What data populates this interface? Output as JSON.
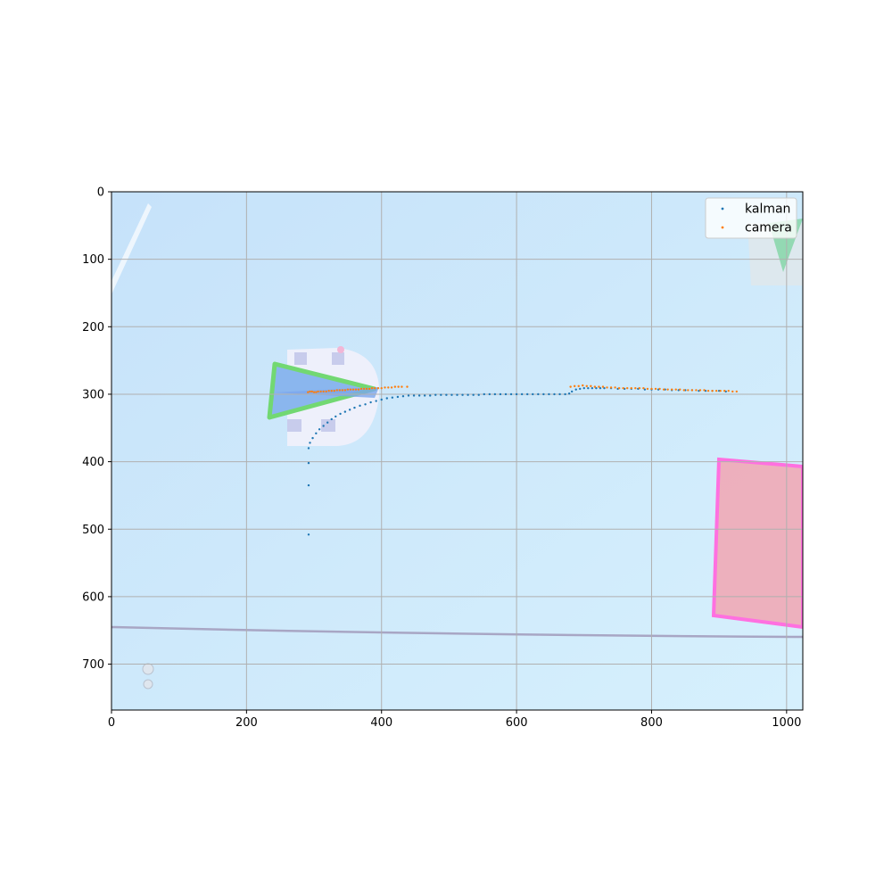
{
  "chart_data": {
    "type": "scatter",
    "title": "",
    "xlabel": "",
    "ylabel": "",
    "xlim": [
      0,
      1024
    ],
    "ylim": [
      768,
      0
    ],
    "y_inverted": true,
    "grid": true,
    "legend_placement": "top-right",
    "x_ticks": [
      "0",
      "200",
      "400",
      "600",
      "800",
      "1000"
    ],
    "y_ticks": [
      "0",
      "100",
      "200",
      "300",
      "400",
      "500",
      "600",
      "700"
    ],
    "background": "overhead camera image of a table with a robot, a green triangle marker and a pink rectangle",
    "series": [
      {
        "name": "kalman",
        "color": "#1f77b4",
        "points": [
          [
            292,
            508
          ],
          [
            292,
            435
          ],
          [
            292,
            402
          ],
          [
            292,
            380
          ],
          [
            294,
            372
          ],
          [
            298,
            365
          ],
          [
            303,
            358
          ],
          [
            308,
            352
          ],
          [
            314,
            347
          ],
          [
            320,
            342
          ],
          [
            326,
            337
          ],
          [
            332,
            333
          ],
          [
            339,
            329
          ],
          [
            346,
            326
          ],
          [
            353,
            323
          ],
          [
            360,
            320
          ],
          [
            368,
            317
          ],
          [
            376,
            315
          ],
          [
            384,
            312
          ],
          [
            392,
            310
          ],
          [
            400,
            308
          ],
          [
            408,
            306
          ],
          [
            416,
            305
          ],
          [
            424,
            304
          ],
          [
            432,
            303
          ],
          [
            440,
            302
          ],
          [
            448,
            302
          ],
          [
            456,
            302
          ],
          [
            464,
            302
          ],
          [
            472,
            302
          ],
          [
            480,
            301
          ],
          [
            488,
            301
          ],
          [
            496,
            301
          ],
          [
            504,
            301
          ],
          [
            512,
            301
          ],
          [
            520,
            301
          ],
          [
            528,
            301
          ],
          [
            536,
            301
          ],
          [
            544,
            301
          ],
          [
            552,
            300
          ],
          [
            560,
            300
          ],
          [
            568,
            300
          ],
          [
            576,
            300
          ],
          [
            584,
            300
          ],
          [
            592,
            300
          ],
          [
            600,
            300
          ],
          [
            608,
            300
          ],
          [
            616,
            300
          ],
          [
            624,
            300
          ],
          [
            632,
            300
          ],
          [
            640,
            300
          ],
          [
            648,
            300
          ],
          [
            656,
            300
          ],
          [
            664,
            300
          ],
          [
            672,
            300
          ],
          [
            678,
            299
          ],
          [
            682,
            296
          ],
          [
            688,
            293
          ],
          [
            694,
            292
          ],
          [
            700,
            291
          ],
          [
            706,
            291
          ],
          [
            712,
            291
          ],
          [
            718,
            291
          ],
          [
            724,
            291
          ],
          [
            730,
            291
          ],
          [
            740,
            291
          ],
          [
            750,
            292
          ],
          [
            760,
            292
          ],
          [
            770,
            292
          ],
          [
            780,
            292
          ],
          [
            790,
            293
          ],
          [
            800,
            293
          ],
          [
            810,
            293
          ],
          [
            820,
            293
          ],
          [
            830,
            294
          ],
          [
            840,
            294
          ],
          [
            850,
            294
          ],
          [
            860,
            294
          ],
          [
            870,
            295
          ],
          [
            880,
            295
          ],
          [
            890,
            295
          ],
          [
            900,
            295
          ],
          [
            910,
            296
          ]
        ]
      },
      {
        "name": "camera",
        "color": "#ff7f0e",
        "points": [
          [
            291,
            297
          ],
          [
            294,
            296
          ],
          [
            297,
            296
          ],
          [
            300,
            297
          ],
          [
            303,
            297
          ],
          [
            306,
            296
          ],
          [
            310,
            296
          ],
          [
            314,
            296
          ],
          [
            318,
            296
          ],
          [
            322,
            295
          ],
          [
            326,
            295
          ],
          [
            330,
            295
          ],
          [
            334,
            294
          ],
          [
            338,
            294
          ],
          [
            342,
            294
          ],
          [
            346,
            294
          ],
          [
            350,
            293
          ],
          [
            354,
            293
          ],
          [
            358,
            293
          ],
          [
            362,
            293
          ],
          [
            366,
            293
          ],
          [
            370,
            292
          ],
          [
            374,
            292
          ],
          [
            378,
            292
          ],
          [
            382,
            292
          ],
          [
            386,
            291
          ],
          [
            390,
            291
          ],
          [
            395,
            291
          ],
          [
            400,
            291
          ],
          [
            405,
            290
          ],
          [
            410,
            290
          ],
          [
            415,
            290
          ],
          [
            420,
            289
          ],
          [
            425,
            289
          ],
          [
            430,
            289
          ],
          [
            438,
            289
          ],
          [
            680,
            289
          ],
          [
            686,
            288
          ],
          [
            692,
            288
          ],
          [
            698,
            287
          ],
          [
            704,
            288
          ],
          [
            710,
            288
          ],
          [
            716,
            289
          ],
          [
            722,
            289
          ],
          [
            728,
            289
          ],
          [
            734,
            290
          ],
          [
            740,
            290
          ],
          [
            746,
            290
          ],
          [
            752,
            291
          ],
          [
            758,
            291
          ],
          [
            764,
            291
          ],
          [
            770,
            291
          ],
          [
            776,
            291
          ],
          [
            782,
            291
          ],
          [
            788,
            291
          ],
          [
            794,
            292
          ],
          [
            800,
            292
          ],
          [
            806,
            292
          ],
          [
            812,
            292
          ],
          [
            818,
            293
          ],
          [
            824,
            293
          ],
          [
            830,
            293
          ],
          [
            836,
            293
          ],
          [
            842,
            293
          ],
          [
            848,
            294
          ],
          [
            854,
            294
          ],
          [
            860,
            294
          ],
          [
            866,
            294
          ],
          [
            872,
            294
          ],
          [
            878,
            294
          ],
          [
            884,
            295
          ],
          [
            890,
            295
          ],
          [
            896,
            295
          ],
          [
            902,
            295
          ],
          [
            908,
            295
          ],
          [
            914,
            295
          ],
          [
            920,
            296
          ],
          [
            926,
            296
          ]
        ]
      }
    ]
  }
}
